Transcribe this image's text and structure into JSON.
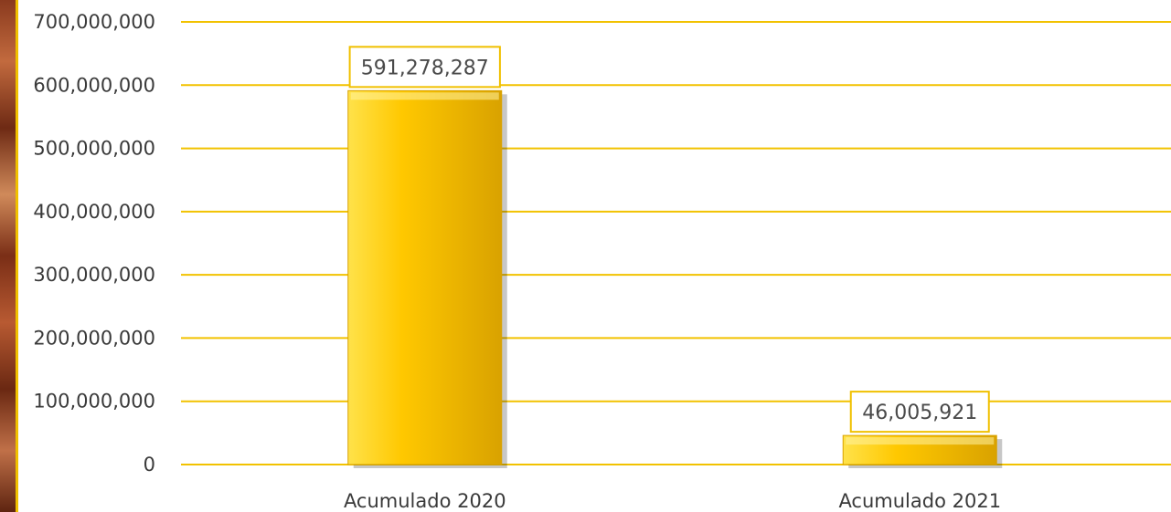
{
  "chart_data": {
    "type": "bar",
    "categories": [
      "Acumulado 2020",
      "Acumulado 2021"
    ],
    "values": [
      591278287,
      46005921
    ],
    "data_labels": [
      "591,278,287",
      "46,005,921"
    ],
    "ylim": [
      0,
      700000000
    ],
    "yticks": [
      0,
      100000000,
      200000000,
      300000000,
      400000000,
      500000000,
      600000000,
      700000000
    ],
    "ytick_labels": [
      "0",
      "100,000,000",
      "200,000,000",
      "300,000,000",
      "400,000,000",
      "500,000,000",
      "600,000,000",
      "700,000,000"
    ],
    "grid": true,
    "legend": "none",
    "colors": {
      "bar": "#ffc800",
      "bar_light": "#ffe24a",
      "bar_dark": "#d9a200",
      "grid": "#f2c200",
      "label_border": "#f0c000"
    }
  }
}
